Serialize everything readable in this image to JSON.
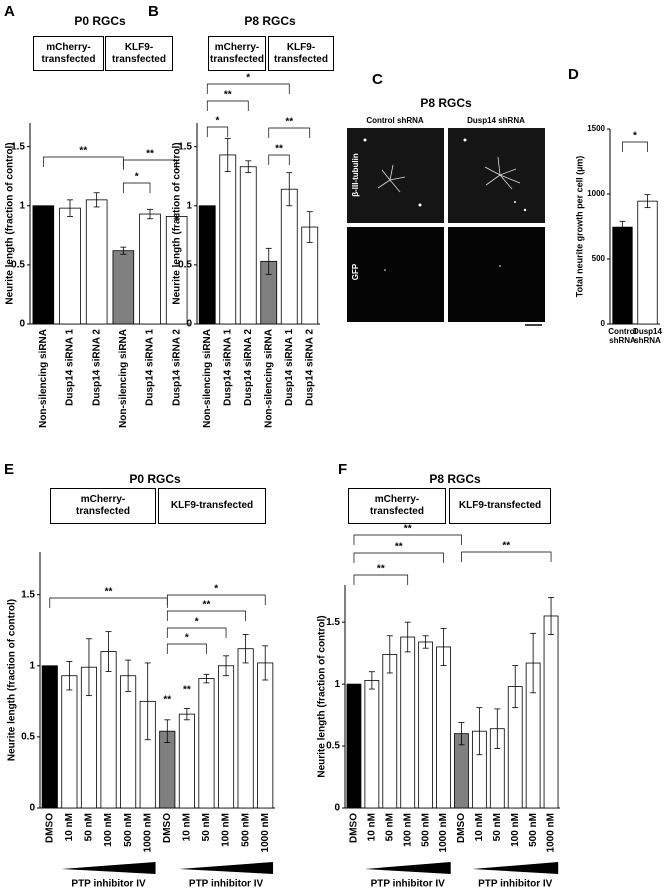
{
  "chart_data": [
    {
      "type": "bar",
      "panel": "A",
      "title": "P0 RGCs",
      "groups": [
        "mCherry-transfected",
        "KLF9-transfected"
      ],
      "categories": [
        "Non-silencing siRNA",
        "Dusp14 siRNA 1",
        "Dusp14 siRNA 2",
        "Non-silencing siRNA",
        "Dusp14 siRNA 1",
        "Dusp14 siRNA 2"
      ],
      "values": [
        1.0,
        0.98,
        1.05,
        0.62,
        0.93,
        0.91
      ],
      "errors": [
        null,
        0.07,
        0.06,
        0.03,
        0.04,
        0.02
      ],
      "colors": [
        "#000000",
        "#ffffff",
        "#ffffff",
        "#808080",
        "#ffffff",
        "#ffffff"
      ],
      "ylabel": "Neurite length (fraction of control)",
      "ylim": [
        0,
        1.7
      ],
      "yticks": [
        0,
        0.5,
        1,
        1.5
      ],
      "significance": [
        "**",
        "*",
        "**"
      ]
    },
    {
      "type": "bar",
      "panel": "B",
      "title": "P8 RGCs",
      "groups": [
        "mCherry-transfected",
        "KLF9-transfected"
      ],
      "categories": [
        "Non-silencing siRNA",
        "Dusp14 siRNA 1",
        "Dusp14 siRNA 2",
        "Non-silencing siRNA",
        "Dusp14 siRNA 1",
        "Dusp14 siRNA 2"
      ],
      "values": [
        1.0,
        1.43,
        1.33,
        0.53,
        1.14,
        0.82
      ],
      "errors": [
        null,
        0.14,
        0.05,
        0.11,
        0.14,
        0.13
      ],
      "colors": [
        "#000000",
        "#ffffff",
        "#ffffff",
        "#808080",
        "#ffffff",
        "#ffffff"
      ],
      "ylabel": "Neurite length (fraction of control)",
      "ylim": [
        0,
        1.7
      ],
      "yticks": [
        0,
        0.5,
        1,
        1.5
      ],
      "significance": [
        "*",
        "**",
        "*",
        "**",
        "**"
      ]
    },
    {
      "type": "bar",
      "panel": "D",
      "categories": [
        "Control shRNA",
        "Dusp14 shRNA"
      ],
      "values": [
        745,
        945
      ],
      "errors": [
        45,
        50
      ],
      "colors": [
        "#000000",
        "#ffffff"
      ],
      "ylabel": "Total neurite growth per cell (µm)",
      "ylim": [
        0,
        1500
      ],
      "yticks": [
        0,
        500,
        1000,
        1500
      ],
      "significance": [
        "*"
      ]
    },
    {
      "type": "bar",
      "panel": "E",
      "title": "P0 RGCs",
      "groups": [
        "mCherry-transfected",
        "KLF9-transfected"
      ],
      "categories": [
        "DMSO",
        "10 nM",
        "50 nM",
        "100 nM",
        "500 nM",
        "1000 nM",
        "DMSO",
        "10 nM",
        "50 nM",
        "100 nM",
        "500 nM",
        "1000 nM"
      ],
      "values": [
        1.0,
        0.93,
        0.99,
        1.1,
        0.93,
        0.75,
        0.54,
        0.66,
        0.91,
        1.0,
        1.12,
        1.02
      ],
      "errors": [
        null,
        0.1,
        0.2,
        0.14,
        0.11,
        0.27,
        0.08,
        0.04,
        0.03,
        0.07,
        0.1,
        0.12
      ],
      "colors": [
        "#000000",
        "#ffffff",
        "#ffffff",
        "#ffffff",
        "#ffffff",
        "#ffffff",
        "#808080",
        "#ffffff",
        "#ffffff",
        "#ffffff",
        "#ffffff",
        "#ffffff"
      ],
      "ylabel": "Neurite length (fraction of control)",
      "ylim": [
        0,
        1.8
      ],
      "yticks": [
        0,
        0.5,
        1,
        1.5
      ],
      "significance": [
        "**",
        "**",
        "**",
        "*",
        "**",
        "*",
        "*"
      ],
      "xgroup_labels": [
        "PTP inhibitor IV",
        "PTP inhibitor IV"
      ]
    },
    {
      "type": "bar",
      "panel": "F",
      "title": "P8 RGCs",
      "groups": [
        "mCherry-transfected",
        "KLF9-transfected"
      ],
      "categories": [
        "DMSO",
        "10 nM",
        "50 nM",
        "100 nM",
        "500 nM",
        "1000 nM",
        "DMSO",
        "10 nM",
        "50 nM",
        "100 nM",
        "500 nM",
        "1000 nM"
      ],
      "values": [
        1.0,
        1.03,
        1.24,
        1.38,
        1.34,
        1.3,
        0.6,
        0.62,
        0.64,
        0.98,
        1.17,
        1.55
      ],
      "errors": [
        null,
        0.07,
        0.15,
        0.12,
        0.05,
        0.15,
        0.09,
        0.19,
        0.16,
        0.17,
        0.24,
        0.15
      ],
      "colors": [
        "#000000",
        "#ffffff",
        "#ffffff",
        "#ffffff",
        "#ffffff",
        "#ffffff",
        "#808080",
        "#ffffff",
        "#ffffff",
        "#ffffff",
        "#ffffff",
        "#ffffff"
      ],
      "ylabel": "Neurite length (fraction of control)",
      "ylim": [
        0,
        1.8
      ],
      "yticks": [
        0,
        0.5,
        1,
        1.5
      ],
      "significance": [
        "**",
        "**",
        "**",
        "**"
      ],
      "xgroup_labels": [
        "PTP inhibitor IV",
        "PTP inhibitor IV"
      ]
    }
  ],
  "micrograph": {
    "panel": "C",
    "title": "P8 RGCs",
    "columns": [
      "Control shRNA",
      "Dusp14 shRNA"
    ],
    "rows": [
      "β-III-tubulin",
      "GFP"
    ]
  }
}
